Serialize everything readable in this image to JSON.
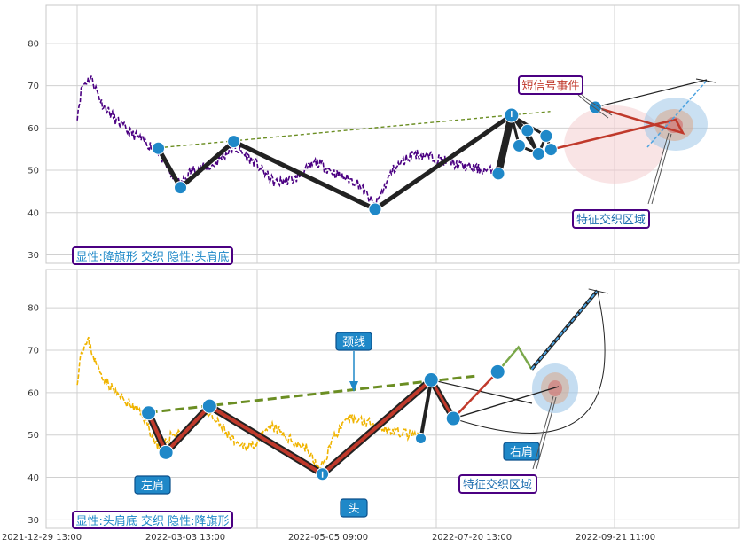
{
  "chart_data": [
    {
      "type": "line",
      "panel": "top",
      "ylim": [
        28,
        89
      ],
      "yticks": [
        30,
        40,
        50,
        60,
        70,
        80
      ],
      "price_color": "#4b0082",
      "pattern_points": [
        {
          "x": 0.162,
          "y": 55.2
        },
        {
          "x": 0.194,
          "y": 45.9
        },
        {
          "x": 0.271,
          "y": 56.8
        },
        {
          "x": 0.475,
          "y": 40.8
        },
        {
          "x": 0.653,
          "y": 49.2
        },
        {
          "x": 0.672,
          "y": 63.0
        },
        {
          "x": 0.683,
          "y": 55.8
        },
        {
          "x": 0.695,
          "y": 59.4
        },
        {
          "x": 0.711,
          "y": 53.9
        },
        {
          "x": 0.722,
          "y": 58.1
        },
        {
          "x": 0.729,
          "y": 54.9
        },
        {
          "x": 0.793,
          "y": 64.9
        }
      ],
      "trend_line": [
        {
          "x": 0.162,
          "y": 55.3
        },
        {
          "x": 0.728,
          "y": 63.9
        }
      ],
      "labels": {
        "bottom_left": "显性:降旗形 交织 隐性:头肩底",
        "short_signal": "短信号事件",
        "zone": "特征交织区域"
      }
    },
    {
      "type": "line",
      "panel": "bottom",
      "ylim": [
        28,
        89
      ],
      "yticks": [
        30,
        40,
        50,
        60,
        70,
        80
      ],
      "price_color": "#f0b400",
      "xtick_labels": [
        "2021-12-29 13:00",
        "2022-03-03 13:00",
        "2022-05-05 09:00",
        "2022-07-20 13:00",
        "2022-09-21 11:00"
      ],
      "pattern_points": [
        {
          "x": 0.148,
          "y": 55.2
        },
        {
          "x": 0.173,
          "y": 45.9
        },
        {
          "x": 0.236,
          "y": 56.8
        },
        {
          "x": 0.399,
          "y": 40.8
        },
        {
          "x": 0.541,
          "y": 49.2
        },
        {
          "x": 0.556,
          "y": 63.0
        },
        {
          "x": 0.588,
          "y": 53.9
        },
        {
          "x": 0.652,
          "y": 64.9
        }
      ],
      "neckline": [
        {
          "x": 0.148,
          "y": 55.3
        },
        {
          "x": 0.62,
          "y": 63.9
        }
      ],
      "projection": [
        {
          "x": 0.652,
          "y": 64.9
        },
        {
          "x": 0.682,
          "y": 70.7
        },
        {
          "x": 0.701,
          "y": 65.5
        },
        {
          "x": 0.796,
          "y": 84.0
        }
      ],
      "labels": {
        "bottom_left": "显性:头肩底 交织 隐性:降旗形",
        "neck": "颈线",
        "left_shoulder": "左肩",
        "head": "头",
        "right_shoulder": "右肩",
        "zone": "特征交织区域"
      }
    }
  ]
}
